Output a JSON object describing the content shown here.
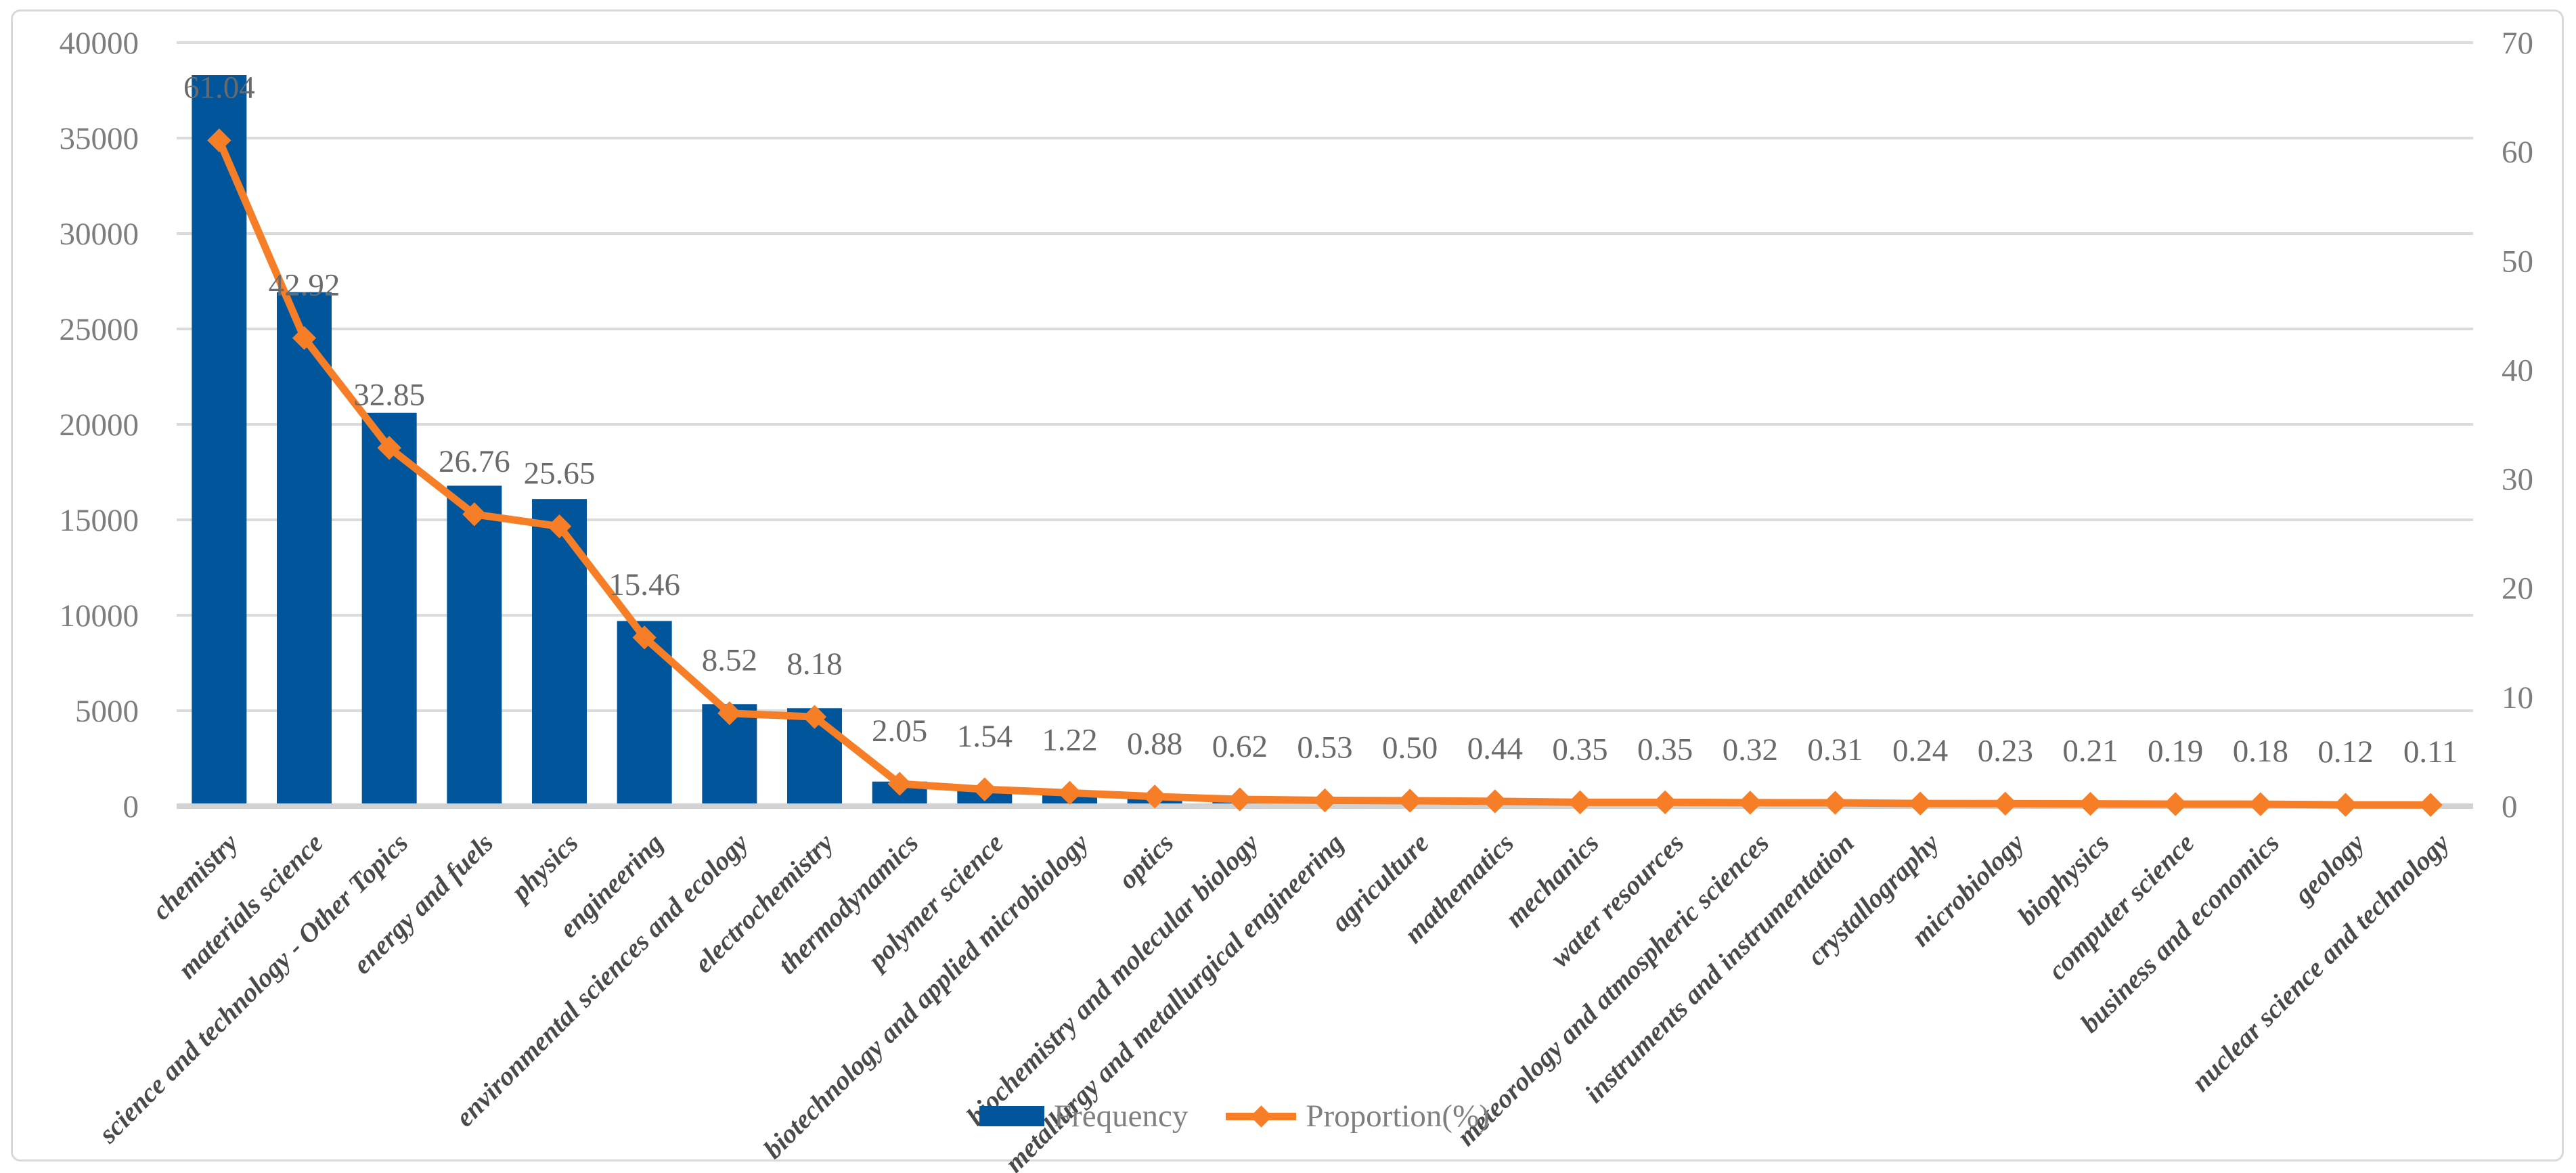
{
  "chart_data": {
    "type": "bar",
    "subtype": "combo-bar-line-dual-axis",
    "categories": [
      "chemistry",
      "materials science",
      "science and technology - Other Topics",
      "energy and fuels",
      "physics",
      "engineering",
      "environmental sciences and ecology",
      "electrochemistry",
      "thermodynamics",
      "polymer science",
      "biotechnology and applied microbiology",
      "optics",
      "biochemistry and molecular biology",
      "metallurgy and metallurgical engineering",
      "agriculture",
      "mathematics",
      "mechanics",
      "water resources",
      "meteorology and atmospheric sciences",
      "instruments and instrumentation",
      "crystallography",
      "microbiology",
      "biophysics",
      "computer science",
      "business and economics",
      "geology",
      "nuclear science and technology"
    ],
    "series": [
      {
        "name": "Frequency",
        "type": "bar",
        "axis": "left",
        "values_estimated_from_gridlines": [
          38297,
          26928,
          20610,
          16789,
          16093,
          9700,
          5345,
          5132,
          1286,
          966,
          765,
          552,
          389,
          333,
          314,
          276,
          220,
          220,
          201,
          194,
          151,
          144,
          132,
          119,
          113,
          75,
          69
        ]
      },
      {
        "name": "Proportion(%)",
        "type": "line",
        "axis": "right",
        "values": [
          61.04,
          42.92,
          32.85,
          26.76,
          25.65,
          15.46,
          8.52,
          8.18,
          2.05,
          1.54,
          1.22,
          0.88,
          0.62,
          0.53,
          0.5,
          0.44,
          0.35,
          0.35,
          0.32,
          0.31,
          0.24,
          0.23,
          0.21,
          0.19,
          0.18,
          0.12,
          0.11
        ],
        "data_labels": [
          "61.04",
          "42.92",
          "32.85",
          "26.76",
          "25.65",
          "15.46",
          "8.52",
          "8.18",
          "2.05",
          "1.54",
          "1.22",
          "0.88",
          "0.62",
          "0.53",
          "0.50",
          "0.44",
          "0.35",
          "0.35",
          "0.32",
          "0.31",
          "0.24",
          "0.23",
          "0.21",
          "0.19",
          "0.18",
          "0.12",
          "0.11"
        ]
      }
    ],
    "left_axis": {
      "min": 0,
      "max": 40000,
      "step": 5000,
      "tick_labels": [
        "0",
        "5000",
        "10000",
        "15000",
        "20000",
        "25000",
        "30000",
        "35000",
        "40000"
      ]
    },
    "right_axis": {
      "min": 0,
      "max": 70,
      "step": 10,
      "tick_labels": [
        "0",
        "10",
        "20",
        "30",
        "40",
        "50",
        "60",
        "70"
      ]
    },
    "grid": "horizontal-major",
    "legend_position": "bottom-center"
  },
  "legend": {
    "frequency_label": "Frequency",
    "proportion_label": "Proportion(%)"
  },
  "colors": {
    "bar": "#01559B",
    "line": "#F57E27",
    "grid": "#DBDBDB",
    "axis_line": "#D2D2D2",
    "tick_text": "#7D7D7D",
    "data_label_text": "#6A6A6A",
    "category_text": "#4A4A4A",
    "legend_text": "#7F7F7F",
    "frame_border": "#D9D9D9",
    "background": "#FFFFFF"
  }
}
